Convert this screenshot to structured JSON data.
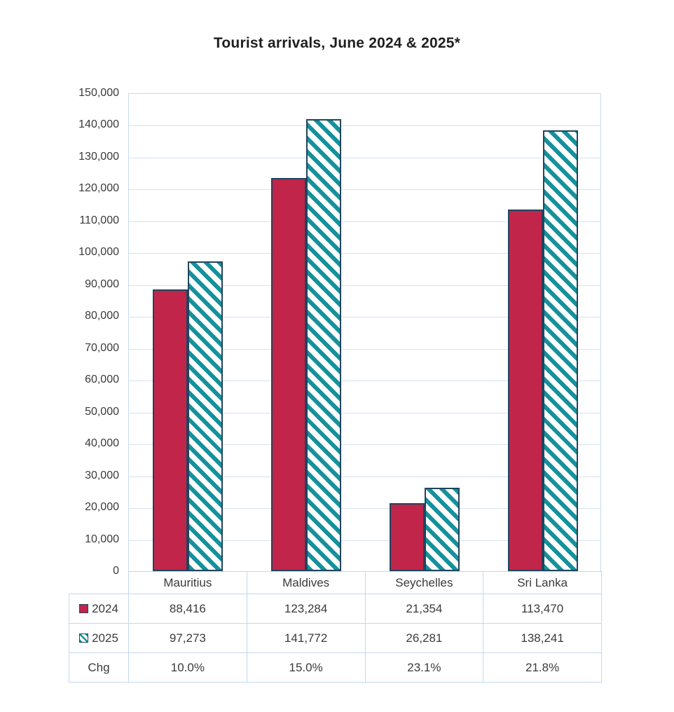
{
  "page": {
    "background": "#ffffff"
  },
  "chart_data": {
    "type": "bar",
    "title": "Tourist arrivals, June 2024 & 2025*",
    "categories": [
      "Mauritius",
      "Maldives",
      "Seychelles",
      "Sri Lanka"
    ],
    "series": [
      {
        "name": "2024",
        "style": "solid",
        "values": [
          88416,
          123284,
          21354,
          113470
        ],
        "labels": [
          "88,416",
          "123,284",
          "21,354",
          "113,470"
        ]
      },
      {
        "name": "2025",
        "style": "hatch",
        "values": [
          97273,
          141772,
          26281,
          138241
        ],
        "labels": [
          "97,273",
          "141,772",
          "26,281",
          "138,241"
        ]
      }
    ],
    "change_row": {
      "label": "Chg",
      "values": [
        "10.0%",
        "15.0%",
        "23.1%",
        "21.8%"
      ]
    },
    "xlabel": "",
    "ylabel": "",
    "ylim": [
      0,
      150000
    ],
    "ytick_step": 10000,
    "grid": true,
    "legend_position": "data-table-stub",
    "hatch_direction": "backslash-diagonal",
    "colors": {
      "series_2024_fill": "#c2254a",
      "series_2025_hatch_stripe": "#15919c",
      "bar_border": "#20455e",
      "gridline": "#d6e2f2",
      "plot_border": "#c9d9ee",
      "table_border": "#c3d7ee",
      "axis_text": "#3a3a3a",
      "title_text": "#1f1f1f"
    }
  }
}
